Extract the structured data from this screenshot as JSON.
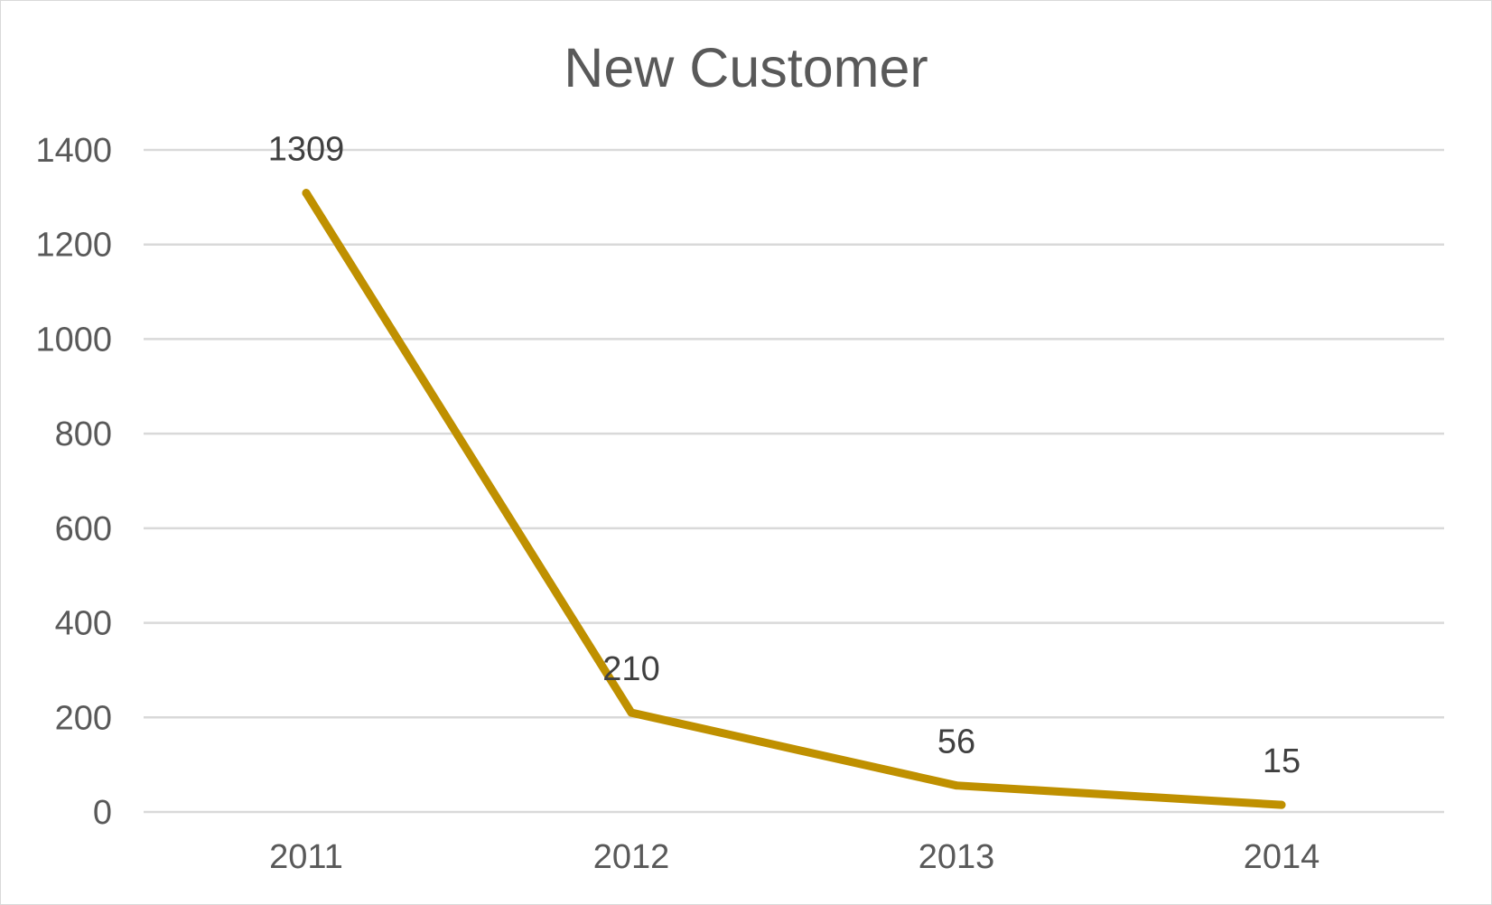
{
  "chart_data": {
    "type": "line",
    "title": "New Customer",
    "xlabel": "",
    "ylabel": "",
    "categories": [
      "2011",
      "2012",
      "2013",
      "2014"
    ],
    "series": [
      {
        "values": [
          1309,
          210,
          56,
          15
        ],
        "data_labels": [
          "1309",
          "210",
          "56",
          "15"
        ]
      }
    ],
    "ylim": [
      0,
      1400
    ],
    "yticks": [
      0,
      200,
      400,
      600,
      800,
      1000,
      1200,
      1400
    ],
    "grid": true,
    "legend": "none",
    "colors": {
      "line": "#bf9000",
      "grid": "#d9d9d9",
      "text": "#595959",
      "data_label": "#404040"
    }
  }
}
